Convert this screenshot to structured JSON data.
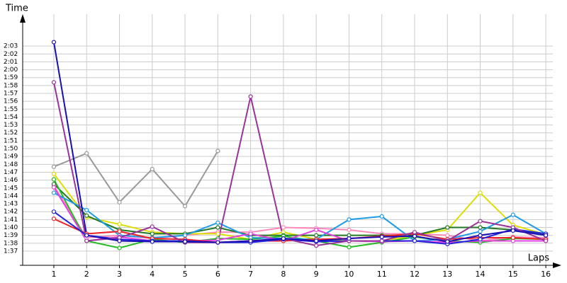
{
  "chart_data": {
    "type": "line",
    "y_label": "Time",
    "x_label": "Laps",
    "x": [
      1,
      2,
      3,
      4,
      5,
      6,
      7,
      8,
      9,
      10,
      11,
      12,
      13,
      14,
      15,
      16
    ],
    "xlim": [
      0.05,
      16.43
    ],
    "xticks": [
      1,
      2,
      3,
      4,
      5,
      6,
      7,
      8,
      9,
      10,
      11,
      12,
      13,
      14,
      15,
      16
    ],
    "ylim": [
      95.2,
      126.6
    ],
    "yticks": [
      {
        "value": 97,
        "label": "1:37"
      },
      {
        "value": 98,
        "label": "1:38"
      },
      {
        "value": 99,
        "label": "1:39"
      },
      {
        "value": 100,
        "label": "1:40"
      },
      {
        "value": 101,
        "label": "1:41"
      },
      {
        "value": 102,
        "label": "1:42"
      },
      {
        "value": 103,
        "label": "1:43"
      },
      {
        "value": 104,
        "label": "1:44"
      },
      {
        "value": 105,
        "label": "1:45"
      },
      {
        "value": 106,
        "label": "1:46"
      },
      {
        "value": 107,
        "label": "1:47"
      },
      {
        "value": 108,
        "label": "1:48"
      },
      {
        "value": 109,
        "label": "1:49"
      },
      {
        "value": 110,
        "label": "1:50"
      },
      {
        "value": 111,
        "label": "1:51"
      },
      {
        "value": 112,
        "label": "1:52"
      },
      {
        "value": 113,
        "label": "1:53"
      },
      {
        "value": 114,
        "label": "1:54"
      },
      {
        "value": 115,
        "label": "1:55"
      },
      {
        "value": 116,
        "label": "1:56"
      },
      {
        "value": 117,
        "label": "1:57"
      },
      {
        "value": 118,
        "label": "1:58"
      },
      {
        "value": 119,
        "label": "1:59"
      },
      {
        "value": 120,
        "label": "2:00"
      },
      {
        "value": 121,
        "label": "2:01"
      },
      {
        "value": 122,
        "label": "2:02"
      },
      {
        "value": 123,
        "label": "2:03"
      }
    ],
    "grid": true,
    "series": [
      {
        "color": "#999999",
        "values": [
          107.7,
          109.4,
          103.2,
          107.4,
          102.7,
          109.7,
          null,
          null,
          null,
          null,
          null,
          null,
          null,
          null,
          null,
          null
        ]
      },
      {
        "color": "#ff88bb",
        "values": [
          105.3,
          98.7,
          99.0,
          98.6,
          99.0,
          99.4,
          99.4,
          100.0,
          99.9,
          99.7,
          99.2,
          99.2,
          99.0,
          98.3,
          98.8,
          98.7
        ]
      },
      {
        "color": "#dddd00",
        "values": [
          106.8,
          101.3,
          100.4,
          99.4,
          99.2,
          99.2,
          98.5,
          99.4,
          98.5,
          98.3,
          98.3,
          99.0,
          99.7,
          104.4,
          100.3,
          99.1
        ]
      },
      {
        "color": "#227722",
        "values": [
          105.5,
          101.5,
          99.7,
          99.2,
          99.2,
          100.0,
          99.0,
          99.0,
          99.0,
          99.0,
          99.0,
          99.0,
          100.0,
          100.0,
          99.7,
          99.2
        ]
      },
      {
        "color": "#22bb22",
        "values": [
          106.1,
          98.3,
          97.4,
          98.5,
          98.1,
          98.6,
          98.5,
          98.9,
          98.3,
          97.5,
          98.1,
          98.8,
          98.3,
          98.1,
          98.6,
          98.5
        ]
      },
      {
        "color": "#1e9be8",
        "values": [
          104.4,
          102.2,
          99.0,
          98.7,
          99.0,
          100.6,
          98.7,
          98.6,
          98.5,
          101.0,
          101.4,
          98.3,
          98.5,
          99.5,
          101.6,
          99.2
        ]
      },
      {
        "color": "#e040e0",
        "values": [
          105.1,
          98.3,
          98.8,
          98.3,
          98.3,
          98.4,
          99.2,
          98.3,
          99.7,
          98.3,
          98.2,
          98.3,
          98.1,
          98.3,
          98.3,
          98.3
        ]
      },
      {
        "color": "#ee2222",
        "values": [
          101.1,
          99.2,
          99.5,
          98.6,
          98.5,
          98.1,
          98.3,
          98.3,
          98.5,
          98.6,
          98.9,
          99.2,
          98.5,
          98.7,
          98.7,
          98.5
        ]
      },
      {
        "color": "#2222dd",
        "values": [
          102.0,
          99.0,
          98.5,
          98.3,
          98.3,
          98.1,
          98.1,
          98.5,
          98.2,
          98.3,
          98.3,
          98.3,
          97.9,
          98.5,
          99.8,
          99.2
        ]
      },
      {
        "color": "#993399",
        "values": [
          118.4,
          98.3,
          98.7,
          100.1,
          98.1,
          98.1,
          116.6,
          98.6,
          97.7,
          98.3,
          98.3,
          99.4,
          98.3,
          100.8,
          100.0,
          98.3
        ]
      },
      {
        "color": "#1a0fb5",
        "values": [
          123.5,
          99.0,
          98.3,
          98.2,
          98.2,
          98.1,
          98.3,
          98.6,
          98.3,
          98.6,
          98.8,
          98.9,
          98.2,
          99.0,
          99.6,
          99.0
        ]
      }
    ]
  }
}
